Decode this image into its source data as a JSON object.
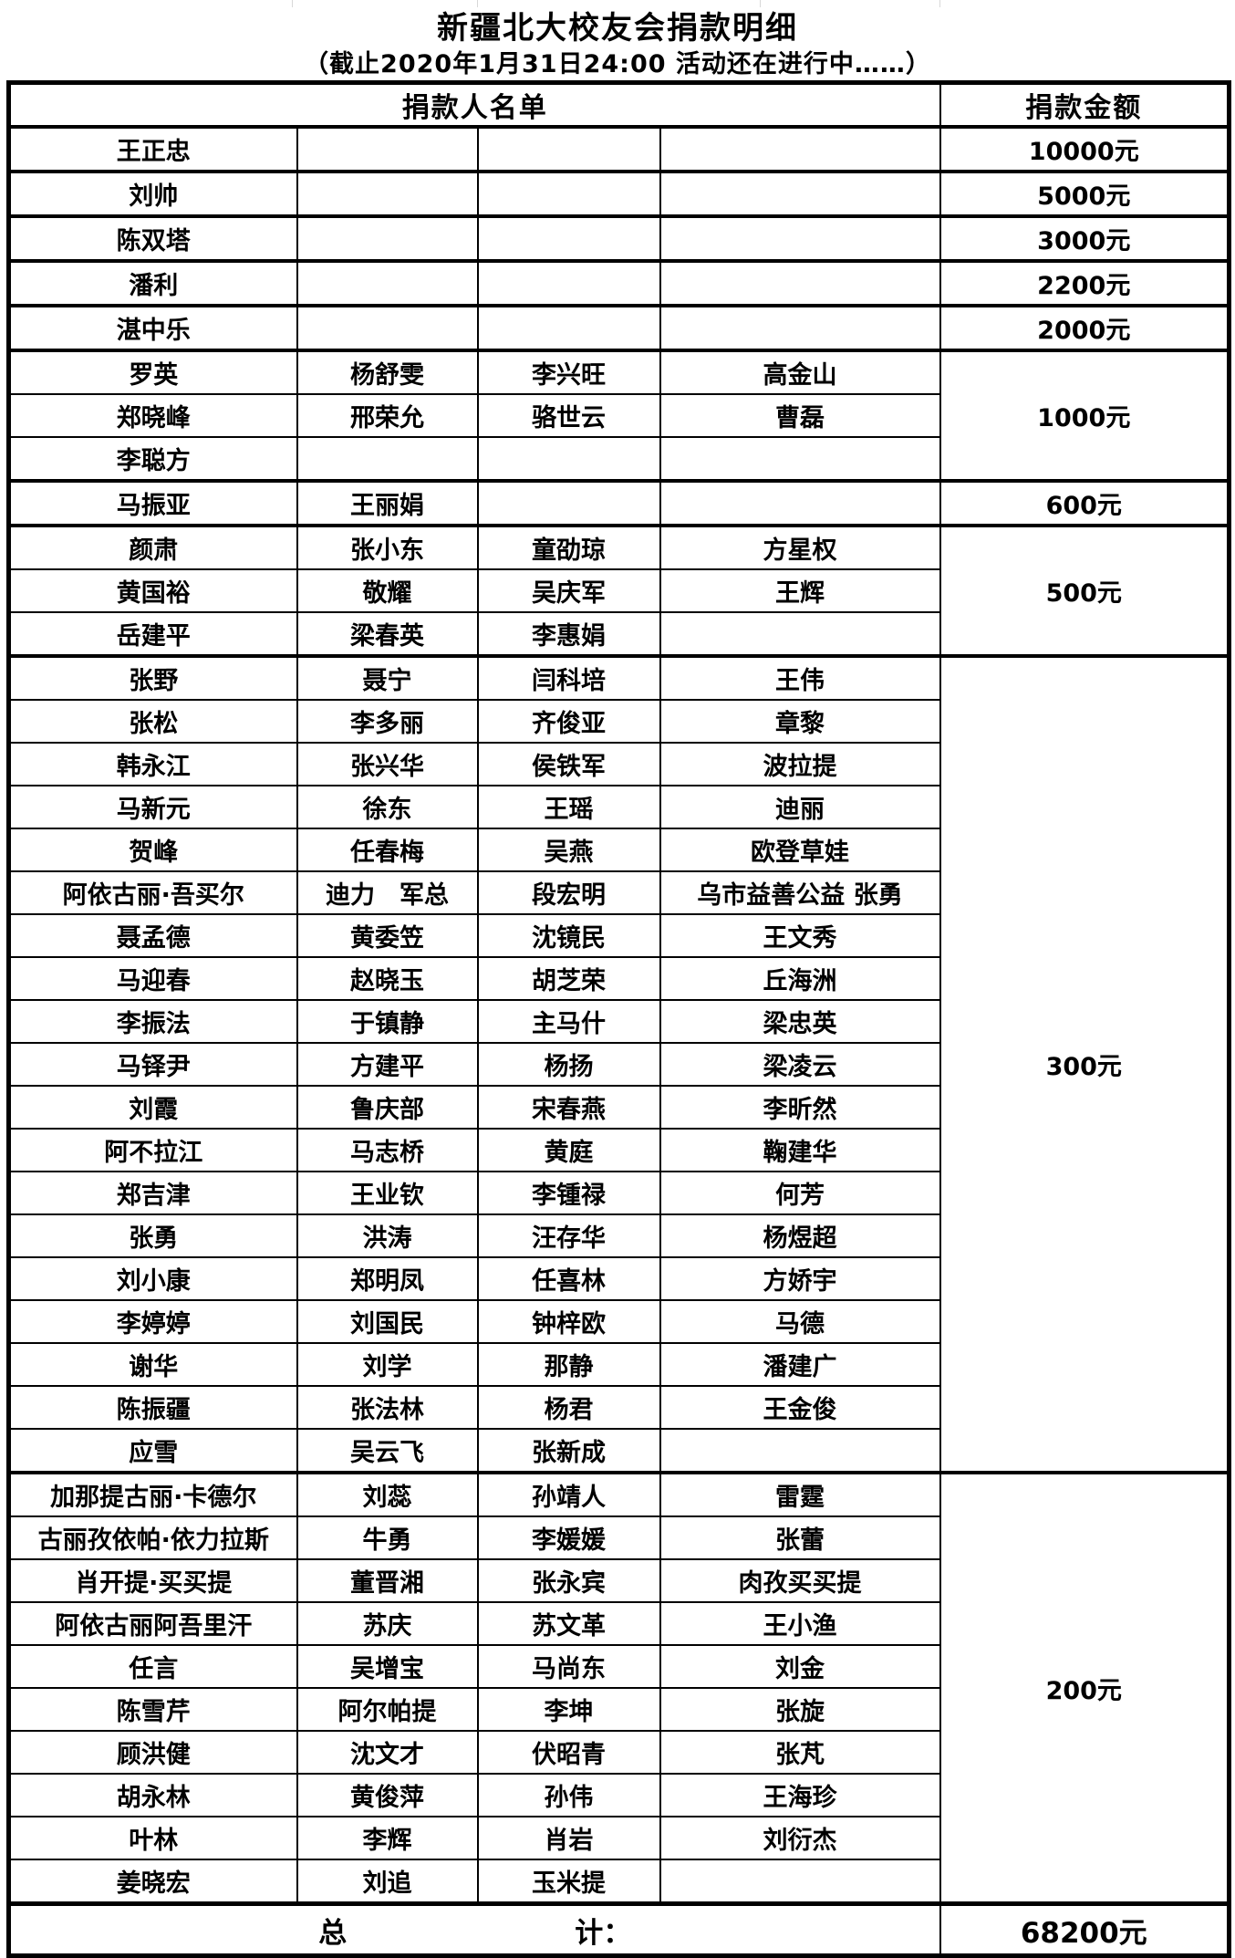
{
  "title": "新疆北大校友会捐款明细",
  "subtitle": "（截止2020年1月31日24:00 活动还在进行中……）",
  "header": {
    "names": "捐款人名单",
    "amount": "捐款金额"
  },
  "groups": [
    {
      "amount": "10000元",
      "rows": [
        [
          "王正忠",
          "",
          "",
          ""
        ]
      ]
    },
    {
      "amount": "5000元",
      "rows": [
        [
          "刘帅",
          "",
          "",
          ""
        ]
      ]
    },
    {
      "amount": "3000元",
      "rows": [
        [
          "陈双塔",
          "",
          "",
          ""
        ]
      ]
    },
    {
      "amount": "2200元",
      "rows": [
        [
          "潘利",
          "",
          "",
          ""
        ]
      ]
    },
    {
      "amount": "2000元",
      "rows": [
        [
          "湛中乐",
          "",
          "",
          ""
        ]
      ]
    },
    {
      "amount": "1000元",
      "rows": [
        [
          "罗英",
          "杨舒雯",
          "李兴旺",
          "高金山"
        ],
        [
          "郑晓峰",
          "邢荣允",
          "骆世云",
          "曹磊"
        ],
        [
          "李聪方",
          "",
          "",
          ""
        ]
      ]
    },
    {
      "amount": "600元",
      "rows": [
        [
          "马振亚",
          "王丽娟",
          "",
          ""
        ]
      ]
    },
    {
      "amount": "500元",
      "rows": [
        [
          "颜肃",
          "张小东",
          "童劭琼",
          "方星权"
        ],
        [
          "黄国裕",
          "敬耀",
          "吴庆军",
          "王辉"
        ],
        [
          "岳建平",
          "梁春英",
          "李惠娟",
          ""
        ]
      ]
    },
    {
      "amount": "300元",
      "rows": [
        [
          "张野",
          "聂宁",
          "闫科培",
          "王伟"
        ],
        [
          "张松",
          "李多丽",
          "齐俊亚",
          "章黎"
        ],
        [
          "韩永江",
          "张兴华",
          "侯铁军",
          "波拉提"
        ],
        [
          "马新元",
          "徐东",
          "王瑶",
          "迪丽"
        ],
        [
          "贺峰",
          "任春梅",
          "吴燕",
          "欧登草娃"
        ],
        [
          "阿依古丽·吾买尔",
          "迪力　军总",
          "段宏明",
          "乌市益善公益 张勇"
        ],
        [
          "聂孟德",
          "黄委笠",
          "沈镜民",
          "王文秀"
        ],
        [
          "马迎春",
          "赵晓玉",
          "胡芝荣",
          "丘海洲"
        ],
        [
          "李振法",
          "于镇静",
          "主马什",
          "梁忠英"
        ],
        [
          "马铎尹",
          "方建平",
          "杨扬",
          "梁凌云"
        ],
        [
          "刘霞",
          "鲁庆部",
          "宋春燕",
          "李昕然"
        ],
        [
          "阿不拉江",
          "马志桥",
          "黄庭",
          "鞠建华"
        ],
        [
          "郑吉津",
          "王业钦",
          "李锺禄",
          "何芳"
        ],
        [
          "张勇",
          "洪涛",
          "汪存华",
          "杨煜超"
        ],
        [
          "刘小康",
          "郑明凤",
          "任喜林",
          "方娇宇"
        ],
        [
          "李婷婷",
          "刘国民",
          "钟梓欧",
          "马德"
        ],
        [
          "谢华",
          "刘学",
          "那静",
          "潘建广"
        ],
        [
          "陈振疆",
          "张法林",
          "杨君",
          "王金俊"
        ],
        [
          "应雪",
          "吴云飞",
          "张新成",
          ""
        ]
      ]
    },
    {
      "amount": "200元",
      "rows": [
        [
          "加那提古丽·卡德尔",
          "刘蕊",
          "孙靖人",
          "雷霆"
        ],
        [
          "古丽孜依帕·依力拉斯",
          "牛勇",
          "李媛媛",
          "张蕾"
        ],
        [
          "肖开提·买买提",
          "董晋湘",
          "张永宾",
          "肉孜买买提"
        ],
        [
          "阿依古丽阿吾里汗",
          "苏庆",
          "苏文革",
          "王小渔"
        ],
        [
          "任言",
          "吴增宝",
          "马尚东",
          "刘金"
        ],
        [
          "陈雪芹",
          "阿尔帕提",
          "李坤",
          "张旋"
        ],
        [
          "顾洪健",
          "沈文才",
          "伏昭青",
          "张芃"
        ],
        [
          "胡永林",
          "黄俊萍",
          "孙伟",
          "王海珍"
        ],
        [
          "叶林",
          "李辉",
          "肖岩",
          "刘衍杰"
        ],
        [
          "姜晓宏",
          "刘追",
          "玉米提",
          ""
        ]
      ]
    }
  ],
  "total": {
    "label_left": "总",
    "label_right": "计：",
    "value": "68200元"
  }
}
